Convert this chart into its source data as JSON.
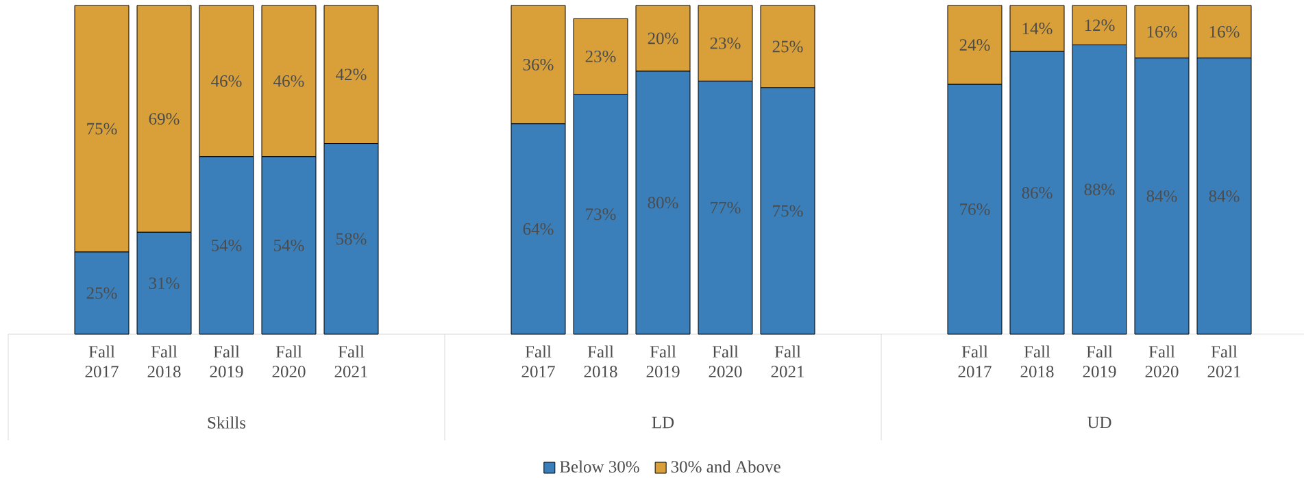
{
  "chart_data": [
    {
      "type": "bar",
      "stacked": true,
      "categories": [
        "Fall 2017",
        "Fall 2018",
        "Fall 2019",
        "Fall 2020",
        "Fall 2021"
      ],
      "xlabel": "Skills",
      "ylim": [
        0,
        100
      ],
      "tick_labels": "x",
      "series": [
        {
          "color": "#3a7fba",
          "values": [
            25,
            31,
            54,
            54,
            58
          ],
          "value_labels": [
            "25%",
            "31%",
            "54%",
            "54%",
            "58%"
          ]
        },
        {
          "color": "#d9a03a",
          "values": [
            75,
            69,
            46,
            46,
            42
          ],
          "value_labels": [
            "75%",
            "69%",
            "46%",
            "46%",
            "42%"
          ]
        }
      ]
    },
    {
      "type": "bar",
      "stacked": true,
      "categories": [
        "Fall 2017",
        "Fall 2018",
        "Fall 2019",
        "Fall 2020",
        "Fall 2021"
      ],
      "xlabel": "LD",
      "ylim": [
        0,
        100
      ],
      "tick_labels": "x",
      "legend": "bottom",
      "series": [
        {
          "name": "Below 30%",
          "color": "#3a7fba",
          "values": [
            64,
            73,
            80,
            77,
            75
          ],
          "value_labels": [
            "64%",
            "73%",
            "80%",
            "77%",
            "75%"
          ]
        },
        {
          "name": "30% and Above",
          "color": "#d9a03a",
          "values": [
            36,
            23,
            20,
            23,
            25
          ],
          "value_labels": [
            "36%",
            "23%",
            "20%",
            "23%",
            "25%"
          ]
        }
      ]
    },
    {
      "type": "bar",
      "stacked": true,
      "categories": [
        "Fall 2017",
        "Fall 2018",
        "Fall 2019",
        "Fall 2020",
        "Fall 2021"
      ],
      "xlabel": "UD",
      "ylim": [
        0,
        100
      ],
      "tick_labels": "x",
      "series": [
        {
          "color": "#3a7fba",
          "values": [
            76,
            86,
            88,
            84,
            84
          ],
          "value_labels": [
            "76%",
            "86%",
            "88%",
            "84%",
            "84%"
          ]
        },
        {
          "color": "#d9a03a",
          "values": [
            24,
            14,
            12,
            16,
            16
          ],
          "value_labels": [
            "24%",
            "14%",
            "12%",
            "16%",
            "16%"
          ]
        }
      ]
    }
  ]
}
